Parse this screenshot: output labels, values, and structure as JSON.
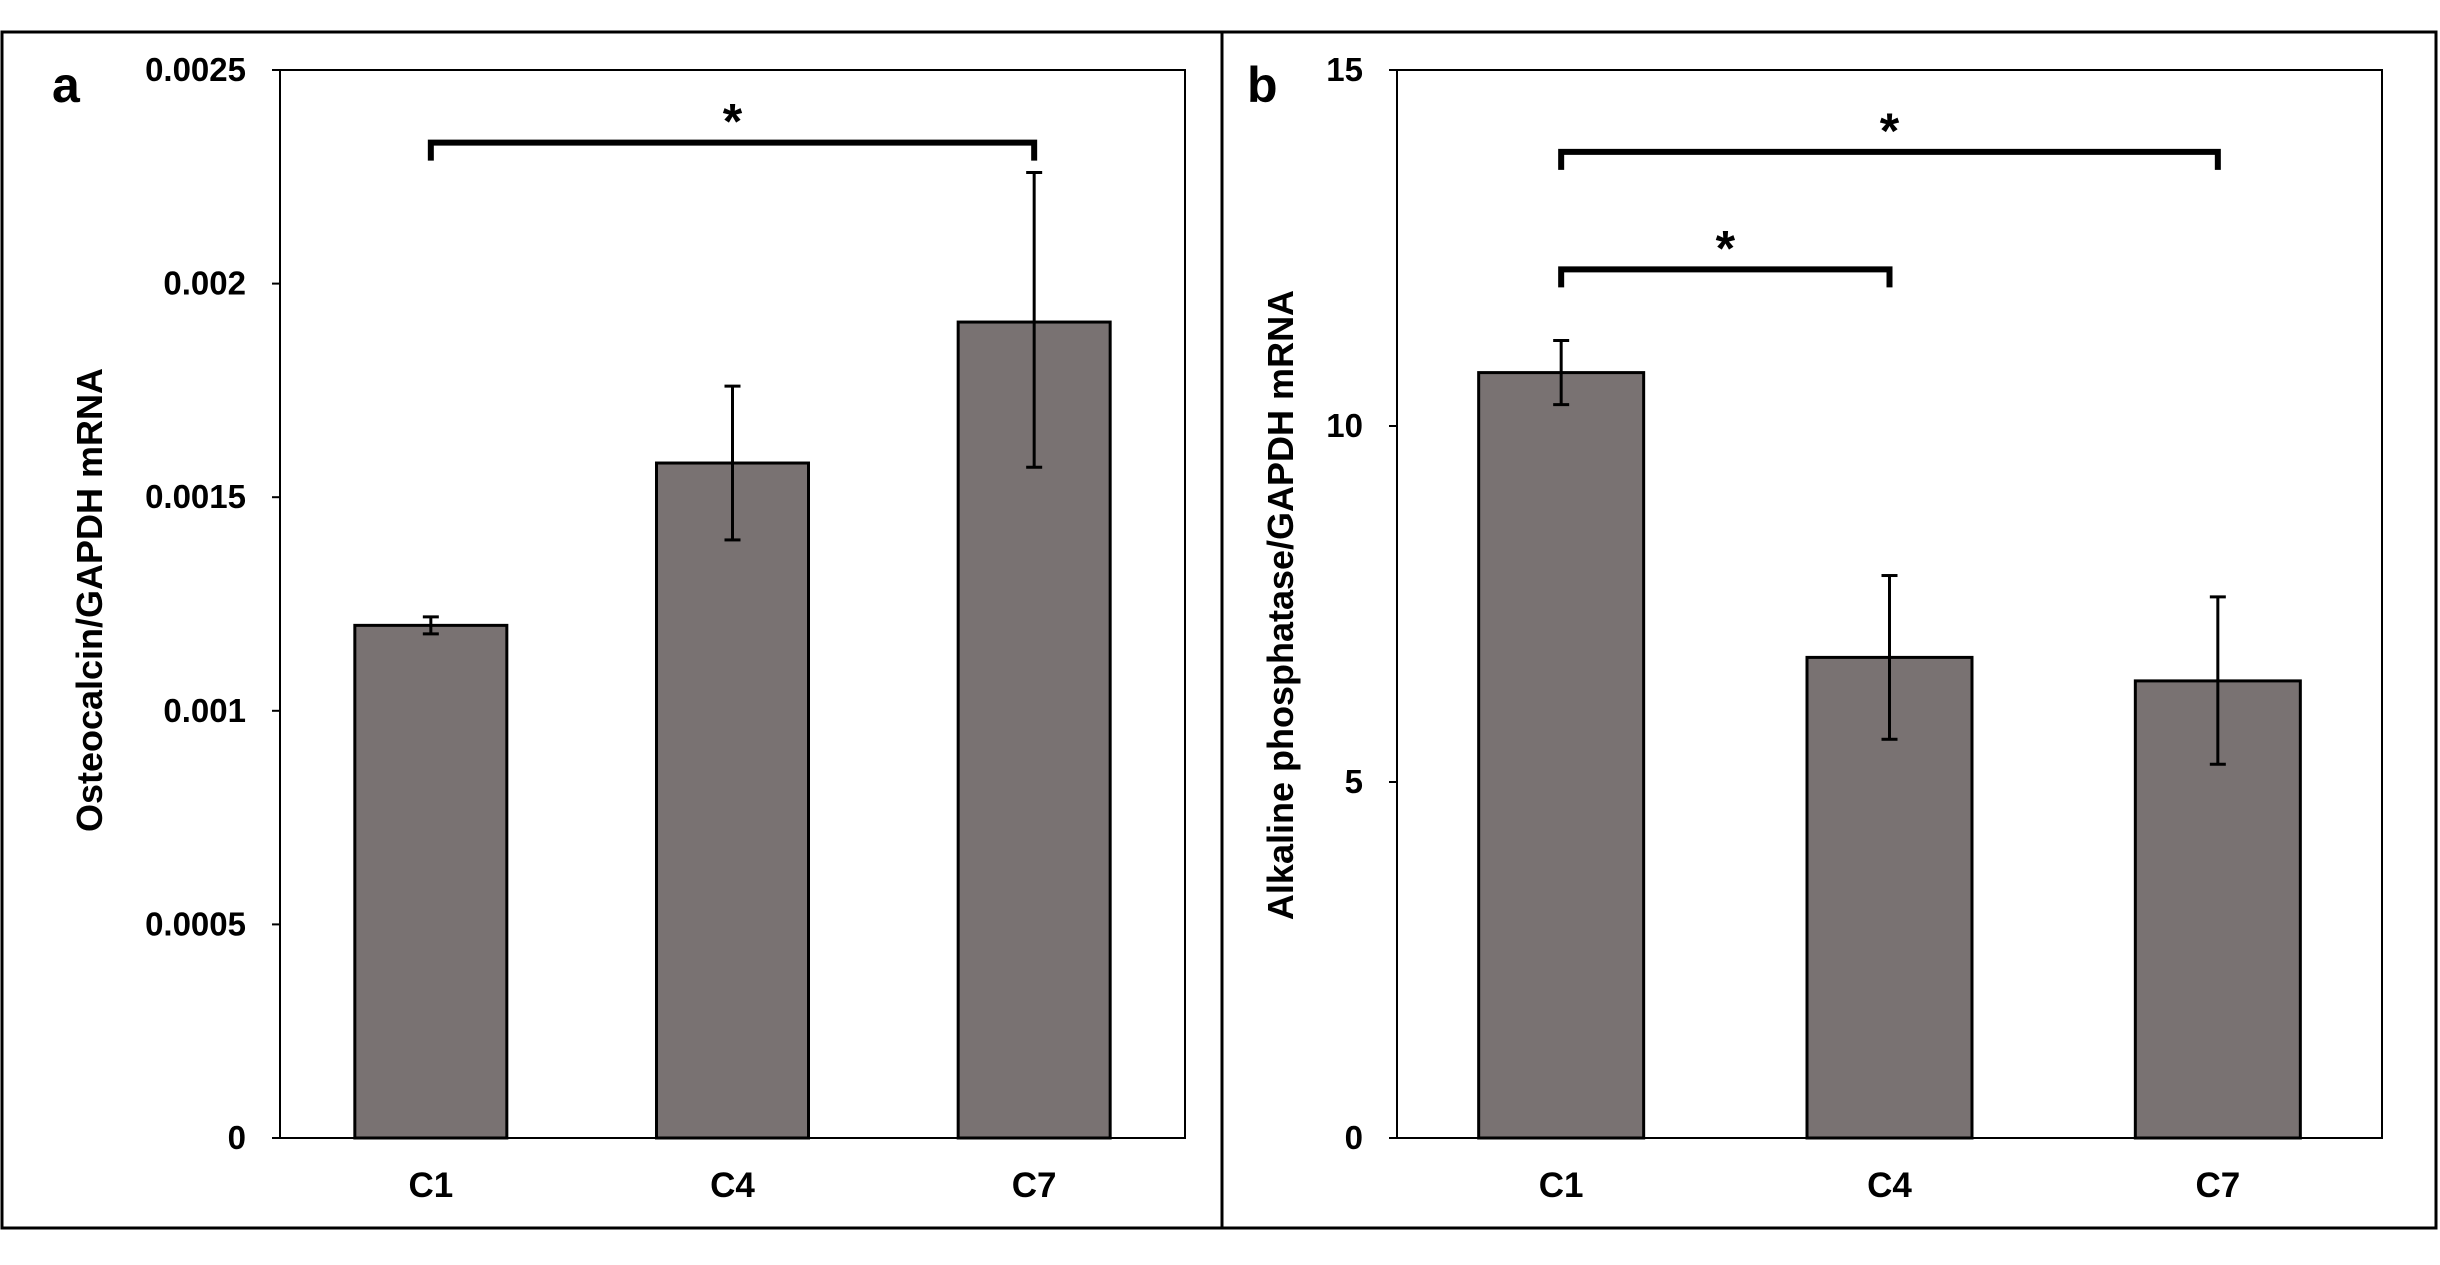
{
  "chart_data": [
    {
      "type": "bar",
      "panel_label": "a",
      "title": "",
      "xlabel": "",
      "ylabel": "Osteocalcin/GAPDH mRNA",
      "categories": [
        "C1",
        "C4",
        "C7"
      ],
      "values": [
        0.0012,
        0.00158,
        0.00191
      ],
      "error_low": [
        0.00118,
        0.0014,
        0.00157
      ],
      "error_high": [
        0.00122,
        0.00176,
        0.00226
      ],
      "ylim": [
        0,
        0.0025
      ],
      "yticks": [
        0,
        0.0005,
        0.001,
        0.0015,
        0.002,
        0.0025
      ],
      "ytick_labels": [
        "0",
        "0.0005",
        "0.001",
        "0.0015",
        "0.002",
        "0.0025"
      ],
      "grid": false,
      "bar_color": "#797272",
      "significance": [
        {
          "from": 0,
          "to": 2,
          "level": 0.00233,
          "label": "*"
        }
      ]
    },
    {
      "type": "bar",
      "panel_label": "b",
      "title": "",
      "xlabel": "",
      "ylabel": "Alkaline phosphatase/GAPDH mRNA",
      "categories": [
        "C1",
        "C4",
        "C7"
      ],
      "values": [
        10.75,
        6.75,
        6.42
      ],
      "error_low": [
        10.3,
        5.6,
        5.25
      ],
      "error_high": [
        11.2,
        7.9,
        7.6
      ],
      "ylim": [
        0,
        15
      ],
      "yticks": [
        0,
        5,
        10,
        15
      ],
      "ytick_labels": [
        "0",
        "5",
        "10",
        "15"
      ],
      "grid": false,
      "bar_color": "#797272",
      "significance": [
        {
          "from": 0,
          "to": 2,
          "level": 13.85,
          "label": "*"
        },
        {
          "from": 0,
          "to": 1,
          "level": 12.2,
          "label": "*"
        }
      ]
    }
  ]
}
